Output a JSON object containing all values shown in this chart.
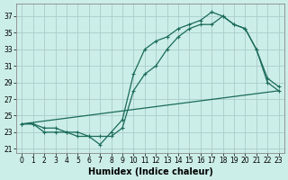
{
  "xlabel": "Humidex (Indice chaleur)",
  "bg_color": "#cceee8",
  "grid_color": "#aacccc",
  "line_color": "#1a6b5a",
  "xlim": [
    -0.5,
    23.5
  ],
  "ylim": [
    20.5,
    38.5
  ],
  "yticks": [
    21,
    23,
    25,
    27,
    29,
    31,
    33,
    35,
    37
  ],
  "xticks": [
    0,
    1,
    2,
    3,
    4,
    5,
    6,
    7,
    8,
    9,
    10,
    11,
    12,
    13,
    14,
    15,
    16,
    17,
    18,
    19,
    20,
    21,
    22,
    23
  ],
  "line1_x": [
    0,
    23
  ],
  "line1_y": [
    24.0,
    28.0
  ],
  "line2_x": [
    0,
    1,
    2,
    3,
    4,
    5,
    6,
    7,
    8,
    9,
    10,
    11,
    12,
    13,
    14,
    15,
    16,
    17,
    18,
    19,
    20,
    21,
    22,
    23
  ],
  "line2_y": [
    24.0,
    24.0,
    23.0,
    23.0,
    23.0,
    22.5,
    22.5,
    21.5,
    23.0,
    24.5,
    30.0,
    33.0,
    34.0,
    34.5,
    35.5,
    36.0,
    36.5,
    37.5,
    37.0,
    36.0,
    35.5,
    33.0,
    29.5,
    28.5
  ],
  "line3_x": [
    0,
    1,
    2,
    3,
    4,
    5,
    6,
    7,
    8,
    9,
    10,
    11,
    12,
    13,
    14,
    15,
    16,
    17,
    18,
    19,
    20,
    21,
    22,
    23
  ],
  "line3_y": [
    24.0,
    24.0,
    23.5,
    23.5,
    23.0,
    23.0,
    22.5,
    22.5,
    22.5,
    23.5,
    28.0,
    30.0,
    31.0,
    33.0,
    34.5,
    35.5,
    36.0,
    36.0,
    37.0,
    36.0,
    35.5,
    33.0,
    29.0,
    28.0
  ],
  "xlabel_fontsize": 7,
  "tick_fontsize": 5.5,
  "linewidth": 0.9,
  "markersize": 3.0
}
